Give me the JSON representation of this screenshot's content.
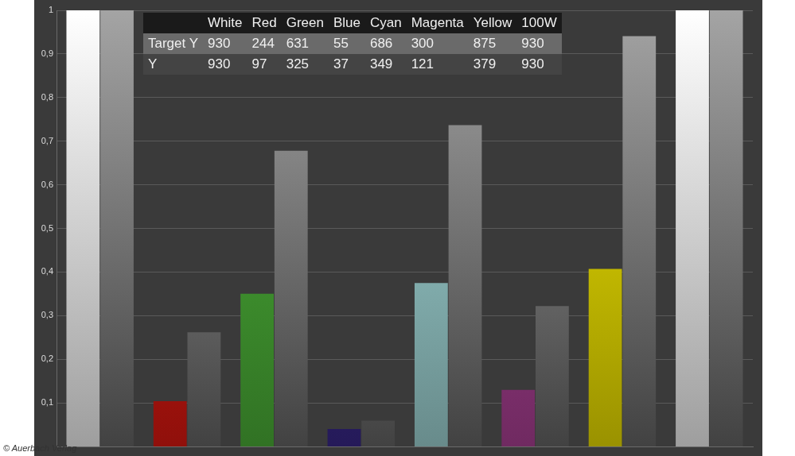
{
  "chart_data": {
    "type": "bar",
    "categories": [
      "White",
      "Red",
      "Green",
      "Blue",
      "Cyan",
      "Magenta",
      "Yellow",
      "100W"
    ],
    "series": [
      {
        "name": "Y",
        "colors": [
          "#ffffff",
          "#e81a12",
          "#4fb83a",
          "#3b2a90",
          "#a8e0e0",
          "#b4449c",
          "#f8ec00",
          "#ffffff"
        ],
        "values": [
          1,
          0.104,
          0.35,
          0.04,
          0.375,
          0.13,
          0.407,
          1
        ]
      },
      {
        "name": "Target Y",
        "color": "#a4a4a4",
        "values": [
          1,
          0.262,
          0.678,
          0.059,
          0.737,
          0.322,
          0.941,
          1
        ]
      }
    ],
    "ylim": [
      0,
      1
    ],
    "yticks": [
      {
        "value": 0.1,
        "label": "0,1"
      },
      {
        "value": 0.2,
        "label": "0,2"
      },
      {
        "value": 0.3,
        "label": "0,3"
      },
      {
        "value": 0.4,
        "label": "0,4"
      },
      {
        "value": 0.5,
        "label": "0,5"
      },
      {
        "value": 0.6,
        "label": "0,6"
      },
      {
        "value": 0.7,
        "label": "0,7"
      },
      {
        "value": 0.8,
        "label": "0,8"
      },
      {
        "value": 0.9,
        "label": "0,9"
      },
      1
    ],
    "grid": true,
    "tick_labels": "y"
  },
  "table": {
    "header": [
      "White",
      "Red",
      "Green",
      "Blue",
      "Cyan",
      "Magenta",
      "Yellow",
      "100W"
    ],
    "rows": [
      {
        "label": "Target Y",
        "values": [
          930,
          244,
          631,
          55,
          686,
          300,
          875,
          930
        ]
      },
      {
        "label": "Y",
        "values": [
          930,
          97,
          325,
          37,
          349,
          121,
          379,
          930
        ]
      }
    ]
  },
  "credit": "© Auerbach Verlag"
}
